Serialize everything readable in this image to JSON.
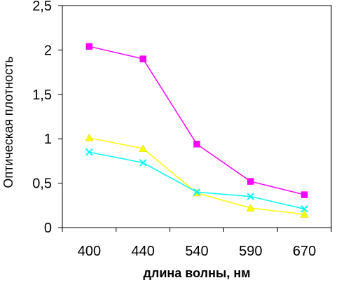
{
  "chart_data": {
    "type": "line",
    "categories": [
      "400",
      "440",
      "540",
      "590",
      "670"
    ],
    "xlabel": "длина волны, нм",
    "ylabel": "Оптическая плотность",
    "ylim": [
      0,
      2.5
    ],
    "yticks": [
      0,
      0.5,
      1,
      1.5,
      2,
      2.5
    ],
    "ytick_labels": [
      "0",
      "0,5",
      "1",
      "1,5",
      "2",
      "2,5"
    ],
    "grid": false,
    "legend": "none",
    "series": [
      {
        "values": [
          2.04,
          1.9,
          0.94,
          0.52,
          0.37
        ],
        "color": "#ff00ff",
        "marker": "square"
      },
      {
        "values": [
          1.01,
          0.89,
          0.39,
          0.22,
          0.15
        ],
        "color": "#ffff00",
        "marker": "triangle"
      },
      {
        "values": [
          0.85,
          0.73,
          0.4,
          0.35,
          0.21
        ],
        "color": "#00ffff",
        "marker": "x"
      }
    ]
  }
}
